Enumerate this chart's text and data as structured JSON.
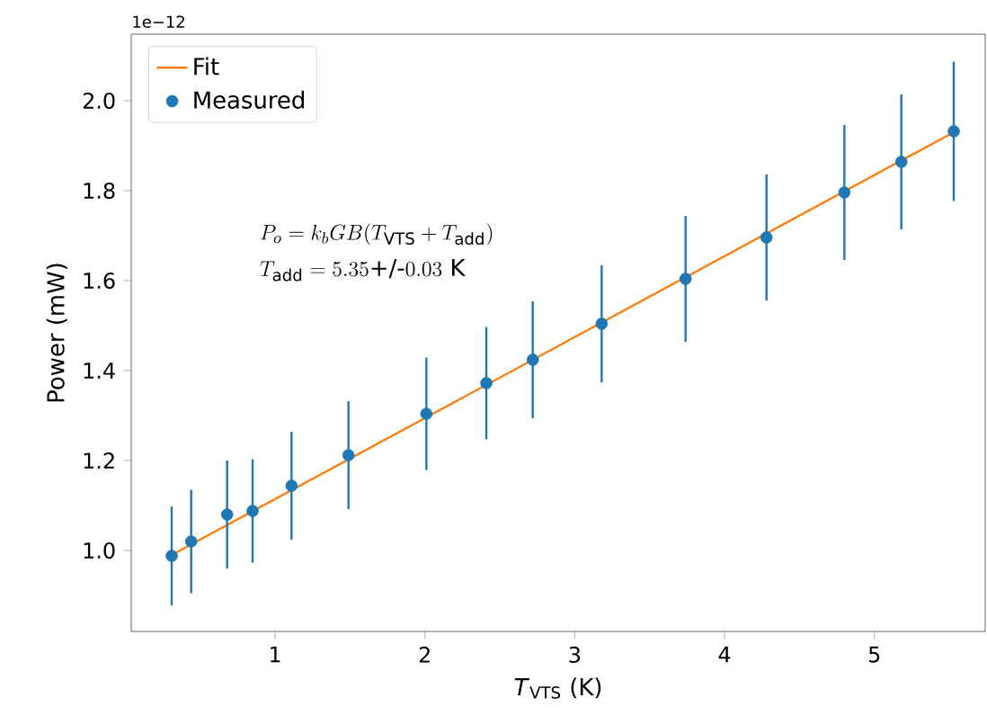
{
  "chart_data": {
    "type": "scatter",
    "xlabel": "*T*$_{VTS}$ (K)",
    "ylabel": "Power (mW)",
    "xlim": [
      0.04,
      5.74
    ],
    "ylim": [
      0.82,
      2.148
    ],
    "xticks": [
      1,
      2,
      3,
      4,
      5
    ],
    "yticks": [
      {
        "value": 1.0,
        "label": "1.0"
      },
      {
        "value": 1.2,
        "label": "1.2"
      },
      {
        "value": 1.4,
        "label": "1.4"
      },
      {
        "value": 1.6,
        "label": "1.6"
      },
      {
        "value": 1.8,
        "label": "1.8"
      },
      {
        "value": 2.0,
        "label": "2.0"
      }
    ],
    "legend": "top left",
    "marker": "circle",
    "grid": false,
    "annotations": [
      "1e−12",
      "P_o = k_bGB(T_{\\rm VTS} + T_{\\rm add})",
      "T_{\\rm add} = 5.35\\text{+/-}0.03\\ \\rm K"
    ],
    "series": [
      {
        "name": "Fit",
        "type": "line",
        "marker": "none",
        "color": "#ff7f0e",
        "x": [
          0.31,
          5.53
        ],
        "values": [
          0.99,
          1.93
        ]
      },
      {
        "name": "Measured",
        "color": "#1f77b4",
        "x": [
          0.31,
          0.44,
          0.68,
          0.85,
          1.11,
          1.49,
          2.01,
          2.41,
          2.72,
          3.18,
          3.74,
          4.28,
          4.8,
          5.18,
          5.53
        ],
        "values": [
          0.988,
          1.02,
          1.08,
          1.088,
          1.144,
          1.212,
          1.304,
          1.372,
          1.424,
          1.504,
          1.604,
          1.696,
          1.796,
          1.864,
          1.932
        ],
        "errors": [
          0.11,
          0.115,
          0.12,
          0.115,
          0.12,
          0.12,
          0.125,
          0.125,
          0.13,
          0.13,
          0.14,
          0.14,
          0.15,
          0.15,
          0.155
        ]
      }
    ]
  }
}
